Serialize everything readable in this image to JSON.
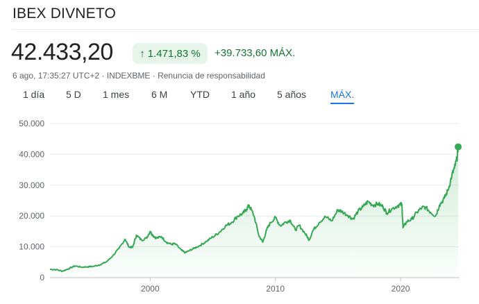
{
  "header": {
    "title": "IBEX DIVNETO"
  },
  "quote": {
    "price": "42.433,20",
    "change_pct": "1.471,83 %",
    "change_abs": "+39.733,60 MÁX.",
    "meta": "6 ago, 17:35:27 UTC+2 · INDEXBME · Renuncia de responsabilidad"
  },
  "tabs": [
    {
      "label": "1 día"
    },
    {
      "label": "5 D"
    },
    {
      "label": "1 mes"
    },
    {
      "label": "6 M"
    },
    {
      "label": "YTD"
    },
    {
      "label": "1 año"
    },
    {
      "label": "5 años"
    },
    {
      "label": "MÁX.",
      "active": true
    }
  ],
  "colors": {
    "line": "#34a853",
    "positive": "#137333",
    "badge_bg": "#e6f4ea",
    "active_tab": "#1a73e8"
  },
  "icons": {
    "change_arrow": "arrow-up-icon"
  },
  "chart_data": {
    "type": "area",
    "ylim": [
      0,
      50000
    ],
    "xlim": [
      1992.0,
      2024.6
    ],
    "yticks": [
      "50.000",
      "40.000",
      "30.000",
      "20.000",
      "10.000",
      "0"
    ],
    "ytick_values": [
      50000,
      40000,
      30000,
      20000,
      10000,
      0
    ],
    "xticks": [
      "2000",
      "2010",
      "2020"
    ],
    "xtick_values": [
      2000,
      2010,
      2020
    ],
    "grid": true,
    "x": [
      1992.0,
      1992.5,
      1993.0,
      1993.5,
      1994.0,
      1994.5,
      1995.0,
      1995.5,
      1996.0,
      1996.5,
      1997.0,
      1997.5,
      1998.0,
      1998.3,
      1998.6,
      1998.9,
      1999.3,
      1999.7,
      2000.0,
      2000.2,
      2000.5,
      2000.9,
      2001.3,
      2001.7,
      2002.0,
      2002.5,
      2002.8,
      2003.1,
      2003.5,
      2004.0,
      2004.5,
      2005.0,
      2005.5,
      2006.0,
      2006.5,
      2007.0,
      2007.4,
      2007.7,
      2007.9,
      2008.3,
      2008.7,
      2009.0,
      2009.3,
      2009.6,
      2010.0,
      2010.4,
      2010.8,
      2011.2,
      2011.6,
      2011.9,
      2012.4,
      2012.7,
      2013.0,
      2013.5,
      2014.0,
      2014.5,
      2015.0,
      2015.3,
      2015.8,
      2016.2,
      2016.6,
      2017.0,
      2017.4,
      2017.8,
      2018.2,
      2018.6,
      2018.9,
      2019.3,
      2019.8,
      2020.1,
      2020.2,
      2020.5,
      2020.9,
      2021.3,
      2021.7,
      2022.0,
      2022.4,
      2022.8,
      2023.1,
      2023.5,
      2023.8,
      2024.1,
      2024.3,
      2024.5,
      2024.6
    ],
    "y": [
      2700,
      2600,
      2100,
      2900,
      3800,
      3400,
      3500,
      3700,
      4200,
      5100,
      7000,
      9400,
      12500,
      10000,
      9800,
      13800,
      12200,
      12800,
      15000,
      13800,
      12800,
      13300,
      11500,
      10800,
      11000,
      8900,
      8100,
      8700,
      9500,
      10500,
      11800,
      13200,
      14600,
      16700,
      17900,
      20000,
      20800,
      22200,
      23500,
      20000,
      13500,
      11500,
      15500,
      17800,
      19500,
      16800,
      18000,
      18600,
      15400,
      17000,
      14200,
      12200,
      15300,
      17900,
      19800,
      18400,
      22000,
      21500,
      20200,
      19000,
      21500,
      23000,
      24700,
      23500,
      24000,
      23000,
      21000,
      22300,
      23400,
      23800,
      16200,
      18200,
      19000,
      21200,
      22700,
      22800,
      21200,
      20000,
      23500,
      25800,
      28500,
      33200,
      35500,
      38500,
      42433
    ]
  }
}
